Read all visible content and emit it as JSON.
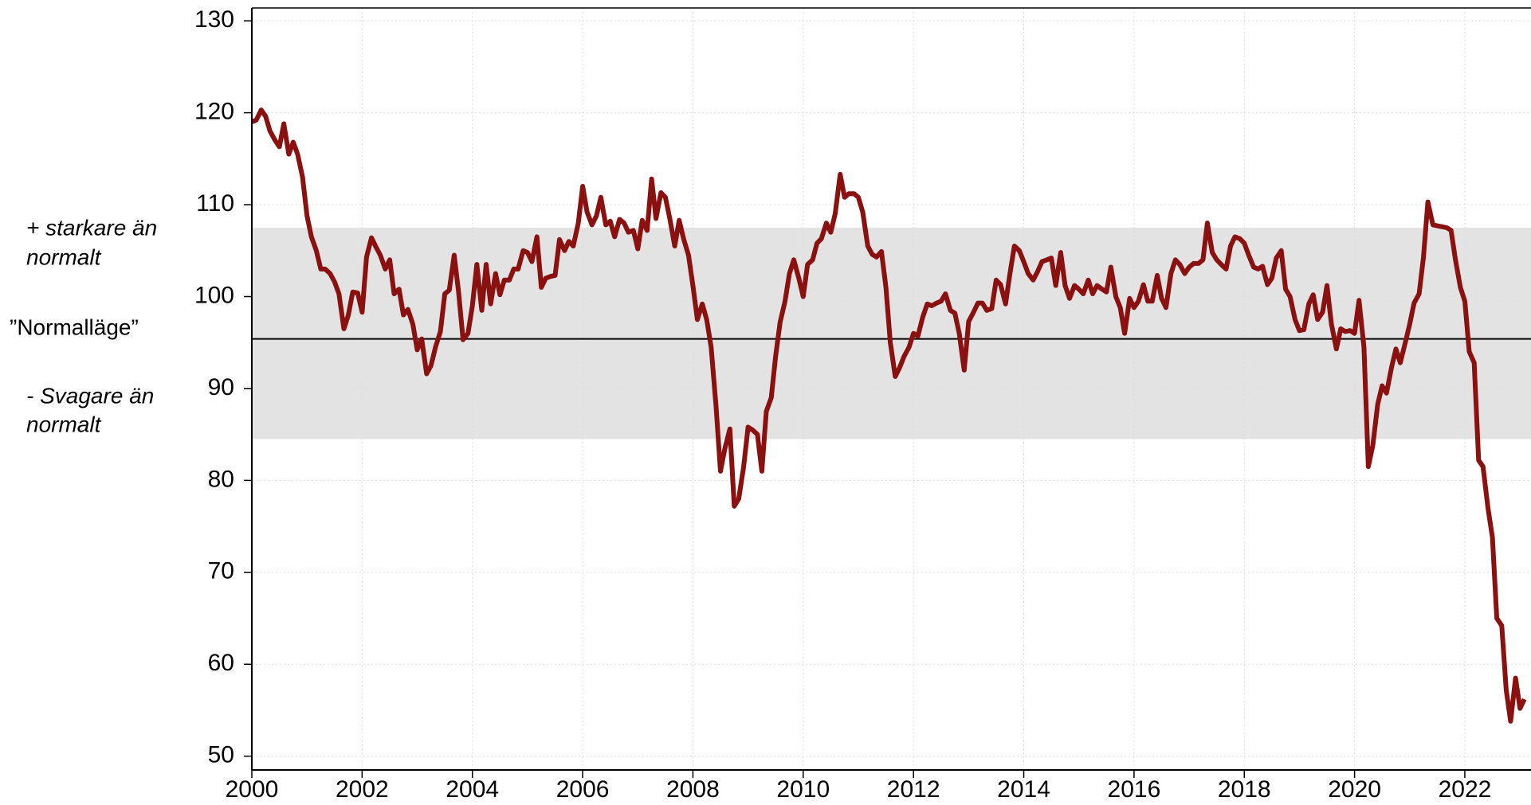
{
  "chart_data": {
    "type": "line",
    "annotations": [
      "+ starkare än",
      "normalt",
      "”Normalläge”",
      "- Svagare än",
      "normalt"
    ],
    "band": [
      84.5,
      107.5
    ],
    "band_color": "#e3e3e3",
    "reference_line": 95.4,
    "grid": true,
    "xlim": [
      2000,
      2023.2
    ],
    "ylim": [
      48.5,
      131.4
    ],
    "xticks": [
      2000,
      2002,
      2004,
      2006,
      2008,
      2010,
      2012,
      2014,
      2016,
      2018,
      2020,
      2022
    ],
    "yticks": [
      50,
      60,
      70,
      80,
      90,
      100,
      110,
      120,
      130
    ],
    "x": [
      2000.0,
      2000.08,
      2000.17,
      2000.25,
      2000.33,
      2000.42,
      2000.5,
      2000.58,
      2000.67,
      2000.75,
      2000.83,
      2000.92,
      2001.0,
      2001.08,
      2001.17,
      2001.25,
      2001.33,
      2001.42,
      2001.5,
      2001.58,
      2001.67,
      2001.75,
      2001.83,
      2001.92,
      2002.0,
      2002.08,
      2002.17,
      2002.25,
      2002.33,
      2002.42,
      2002.5,
      2002.58,
      2002.67,
      2002.75,
      2002.83,
      2002.92,
      2003.0,
      2003.08,
      2003.17,
      2003.25,
      2003.33,
      2003.42,
      2003.5,
      2003.58,
      2003.67,
      2003.75,
      2003.83,
      2003.92,
      2004.0,
      2004.08,
      2004.17,
      2004.25,
      2004.33,
      2004.42,
      2004.5,
      2004.58,
      2004.67,
      2004.75,
      2004.83,
      2004.92,
      2005.0,
      2005.08,
      2005.17,
      2005.25,
      2005.33,
      2005.42,
      2005.5,
      2005.58,
      2005.67,
      2005.75,
      2005.83,
      2005.92,
      2006.0,
      2006.08,
      2006.17,
      2006.25,
      2006.33,
      2006.42,
      2006.5,
      2006.58,
      2006.67,
      2006.75,
      2006.83,
      2006.92,
      2007.0,
      2007.08,
      2007.17,
      2007.25,
      2007.33,
      2007.42,
      2007.5,
      2007.58,
      2007.67,
      2007.75,
      2007.83,
      2007.92,
      2008.0,
      2008.08,
      2008.17,
      2008.25,
      2008.33,
      2008.42,
      2008.5,
      2008.58,
      2008.67,
      2008.75,
      2008.83,
      2008.92,
      2009.0,
      2009.08,
      2009.17,
      2009.25,
      2009.33,
      2009.42,
      2009.5,
      2009.58,
      2009.67,
      2009.75,
      2009.83,
      2009.92,
      2010.0,
      2010.08,
      2010.17,
      2010.25,
      2010.33,
      2010.42,
      2010.5,
      2010.58,
      2010.67,
      2010.75,
      2010.83,
      2010.92,
      2011.0,
      2011.08,
      2011.17,
      2011.25,
      2011.33,
      2011.42,
      2011.5,
      2011.58,
      2011.67,
      2011.75,
      2011.83,
      2011.92,
      2012.0,
      2012.08,
      2012.17,
      2012.25,
      2012.33,
      2012.42,
      2012.5,
      2012.58,
      2012.67,
      2012.75,
      2012.83,
      2012.92,
      2013.0,
      2013.08,
      2013.17,
      2013.25,
      2013.33,
      2013.42,
      2013.5,
      2013.58,
      2013.67,
      2013.75,
      2013.83,
      2013.92,
      2014.0,
      2014.08,
      2014.17,
      2014.25,
      2014.33,
      2014.42,
      2014.5,
      2014.58,
      2014.67,
      2014.75,
      2014.83,
      2014.92,
      2015.0,
      2015.08,
      2015.17,
      2015.25,
      2015.33,
      2015.42,
      2015.5,
      2015.58,
      2015.67,
      2015.75,
      2015.83,
      2015.92,
      2016.0,
      2016.08,
      2016.17,
      2016.25,
      2016.33,
      2016.42,
      2016.5,
      2016.58,
      2016.67,
      2016.75,
      2016.83,
      2016.92,
      2017.0,
      2017.08,
      2017.17,
      2017.25,
      2017.33,
      2017.42,
      2017.5,
      2017.58,
      2017.67,
      2017.75,
      2017.83,
      2017.92,
      2018.0,
      2018.08,
      2018.17,
      2018.25,
      2018.33,
      2018.42,
      2018.5,
      2018.58,
      2018.67,
      2018.75,
      2018.83,
      2018.92,
      2019.0,
      2019.08,
      2019.17,
      2019.25,
      2019.33,
      2019.42,
      2019.5,
      2019.58,
      2019.67,
      2019.75,
      2019.83,
      2019.92,
      2020.0,
      2020.08,
      2020.17,
      2020.25,
      2020.33,
      2020.42,
      2020.5,
      2020.58,
      2020.67,
      2020.75,
      2020.83,
      2020.92,
      2021.0,
      2021.08,
      2021.17,
      2021.25,
      2021.33,
      2021.42,
      2021.5,
      2021.58,
      2021.67,
      2021.75,
      2021.83,
      2021.92,
      2022.0,
      2022.08,
      2022.17,
      2022.25,
      2022.33,
      2022.42,
      2022.5,
      2022.58,
      2022.67,
      2022.75,
      2022.83,
      2022.92,
      2023.0,
      2023.08
    ],
    "series": [
      {
        "color": "#8b1010",
        "values": [
          119,
          119.2,
          120.3,
          119.6,
          118,
          117,
          116.3,
          118.8,
          115.5,
          116.8,
          115.5,
          113,
          108.8,
          106.5,
          105,
          103,
          103,
          102.5,
          101.6,
          100.3,
          96.5,
          98,
          100.5,
          100.4,
          98.3,
          104.3,
          106.4,
          105.4,
          104.5,
          103,
          104,
          100.3,
          100.8,
          98,
          98.6,
          97,
          94.2,
          95.4,
          91.6,
          92.5,
          94.5,
          96.2,
          100.3,
          100.7,
          104.5,
          100.5,
          95.3,
          96,
          99,
          103.5,
          98.5,
          103.5,
          99.2,
          102.5,
          100.2,
          101.8,
          101.8,
          103,
          103,
          105,
          104.8,
          103.8,
          106.5,
          101,
          102,
          102.2,
          102.3,
          106.2,
          105,
          106,
          105.5,
          108,
          112,
          109.2,
          107.8,
          108.8,
          110.8,
          107.8,
          108.2,
          106.5,
          108.4,
          108,
          107,
          107.2,
          105.2,
          108.3,
          107.2,
          112.8,
          108.5,
          111.3,
          110.8,
          108.5,
          105.5,
          108.3,
          106.3,
          104.5,
          101.2,
          97.5,
          99.2,
          97.5,
          94.5,
          88,
          81,
          83.5,
          85.6,
          77.2,
          78,
          81.5,
          85.8,
          85.5,
          85,
          81,
          87.5,
          89,
          93.5,
          97.2,
          99.5,
          102.5,
          104,
          102,
          100,
          103.5,
          104,
          105.8,
          106.3,
          108,
          107,
          109,
          113.3,
          110.8,
          111.2,
          111.2,
          110.8,
          109.2,
          105.5,
          104.6,
          104.3,
          104.9,
          101,
          95,
          91.3,
          92.3,
          93.5,
          94.5,
          96,
          95.7,
          97.8,
          99.2,
          99,
          99.3,
          99.5,
          100.3,
          98.5,
          98.2,
          96,
          92,
          97.3,
          98.2,
          99.3,
          99.3,
          98.5,
          98.7,
          101.8,
          101.3,
          99.2,
          102.5,
          105.5,
          105,
          103.8,
          102.5,
          101.8,
          102.7,
          103.8,
          104,
          104.2,
          101.2,
          104.8,
          101.2,
          99.8,
          101.2,
          100.8,
          100.3,
          101.8,
          100.3,
          101.2,
          100.8,
          100.5,
          103.2,
          100,
          98.8,
          96,
          99.8,
          98.8,
          99.5,
          101.3,
          99.5,
          99.5,
          102.3,
          99.8,
          98.8,
          102.5,
          104,
          103.5,
          102.5,
          103.2,
          103.6,
          103.6,
          104,
          108,
          104.8,
          104,
          103.5,
          103,
          105.5,
          106.5,
          106.3,
          105.8,
          104.5,
          103.2,
          103,
          103.3,
          101.3,
          102,
          104.2,
          105,
          100.8,
          100,
          97.5,
          96.3,
          96.4,
          99.2,
          100.2,
          97.5,
          98.3,
          101.2,
          97,
          94.3,
          96.5,
          96.2,
          96.3,
          96,
          99.6,
          94.5,
          81.5,
          83.8,
          88.3,
          90.3,
          89.5,
          92.3,
          94.3,
          92.8,
          95,
          97,
          99.3,
          100.3,
          104.3,
          110.3,
          107.8,
          107.7,
          107.6,
          107.5,
          107.2,
          104,
          101,
          99.5,
          94,
          92.8,
          82.2,
          81.5,
          77,
          73.8,
          65,
          64.2,
          57.2,
          53.8,
          58.5,
          55.2,
          56.2
        ]
      }
    ]
  }
}
